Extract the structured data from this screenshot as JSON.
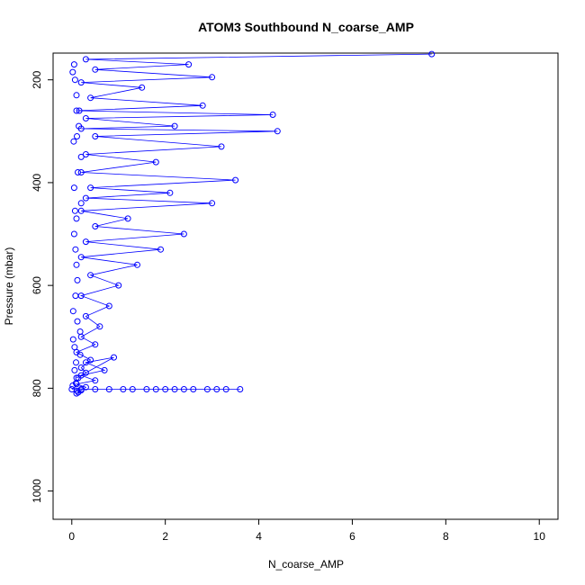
{
  "chart_data": {
    "type": "scatter",
    "title": "ATOM3 Southbound N_coarse_AMP",
    "xlabel": "N_coarse_AMP",
    "ylabel": "Pressure (mbar)",
    "xlim": [
      -0.4,
      10.4
    ],
    "ylim": [
      1055,
      148
    ],
    "y_reversed": true,
    "grid": false,
    "x_ticks": [
      0,
      2,
      4,
      6,
      8,
      10
    ],
    "y_ticks": [
      200,
      400,
      600,
      800,
      1000
    ],
    "series": [
      {
        "color": "#0000ff",
        "marker": "open-circle",
        "connect": true,
        "x": [
          7.7,
          0.3,
          2.5,
          0.5,
          3.0,
          0.2,
          1.5,
          0.4,
          2.8,
          0.1,
          4.3,
          0.3,
          2.2,
          0.2,
          4.4,
          0.5,
          3.2,
          0.3,
          1.8,
          0.2,
          3.5,
          0.4,
          2.1,
          0.3,
          3.0,
          0.2,
          1.2,
          0.5,
          2.4,
          0.3,
          1.9,
          0.2,
          1.4,
          0.4,
          1.0,
          0.2,
          0.8,
          0.3,
          0.6,
          0.2,
          0.5,
          0.1,
          0.4,
          0.2,
          0.3,
          0.1,
          0.9,
          0.3,
          0.7,
          0.2,
          0.5,
          0.1,
          0.3,
          0.2,
          0.1
        ],
        "y": [
          150,
          160,
          170,
          180,
          195,
          205,
          215,
          235,
          250,
          260,
          268,
          275,
          290,
          295,
          300,
          310,
          330,
          345,
          360,
          380,
          395,
          410,
          420,
          430,
          440,
          455,
          470,
          485,
          500,
          515,
          530,
          545,
          560,
          580,
          600,
          620,
          640,
          660,
          680,
          700,
          715,
          730,
          745,
          760,
          770,
          780,
          740,
          750,
          765,
          775,
          785,
          792,
          798,
          804,
          810
        ]
      },
      {
        "color": "#0000ff",
        "marker": "open-circle",
        "connect": true,
        "x": [
          0.0,
          0.2,
          0.5,
          0.8,
          1.1,
          1.3,
          1.6,
          1.8,
          2.0,
          2.2,
          2.4,
          2.6,
          2.9,
          3.1,
          3.3,
          3.6
        ],
        "y": [
          802,
          802,
          802,
          802,
          802,
          802,
          802,
          802,
          802,
          802,
          802,
          802,
          802,
          802,
          802,
          802
        ]
      },
      {
        "color": "#0000ff",
        "marker": "open-circle",
        "connect": false,
        "x": [
          0.05,
          0.1,
          0.15,
          0.2,
          0.05,
          0.1,
          0.08,
          0.12,
          0.03,
          0.18,
          0.06,
          0.09,
          0.14,
          0.02,
          0.11,
          0.07,
          0.16,
          0.04,
          0.13,
          0.2,
          0.05,
          0.1,
          0.08,
          0.12,
          0.03,
          0.18,
          0.06,
          0.09,
          0.14,
          0.02,
          0.11,
          0.07
        ],
        "y": [
          170,
          230,
          290,
          350,
          410,
          470,
          530,
          590,
          650,
          690,
          720,
          750,
          780,
          795,
          805,
          200,
          260,
          320,
          380,
          440,
          500,
          560,
          620,
          670,
          705,
          735,
          765,
          790,
          808,
          185,
          310,
          455
        ]
      }
    ]
  }
}
